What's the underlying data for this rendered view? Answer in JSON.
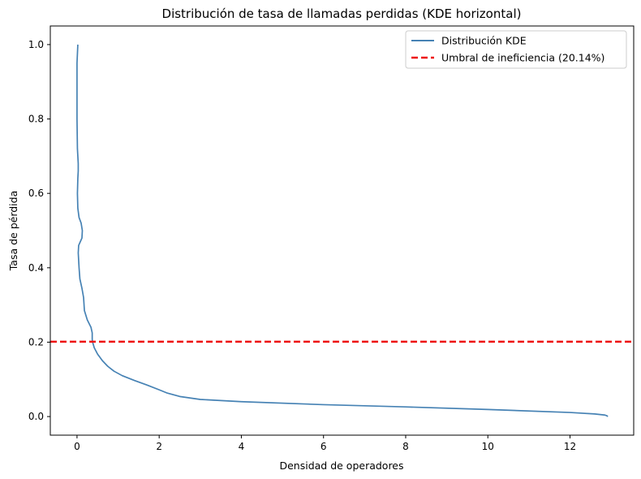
{
  "chart_data": {
    "type": "line",
    "title": "Distribución de tasa de llamadas perdidas (KDE horizontal)",
    "xlabel": "Densidad de operadores",
    "ylabel": "Tasa de pérdida",
    "xlim": [
      -0.65,
      13.55
    ],
    "ylim": [
      -0.05,
      1.05
    ],
    "xticks": [
      0,
      2,
      4,
      6,
      8,
      10,
      12
    ],
    "xtick_labels": [
      "0",
      "2",
      "4",
      "6",
      "8",
      "10",
      "12"
    ],
    "yticks": [
      0.0,
      0.2,
      0.4,
      0.6,
      0.8,
      1.0
    ],
    "ytick_labels": [
      "0.0",
      "0.2",
      "0.4",
      "0.6",
      "0.8",
      "1.0"
    ],
    "grid": false,
    "legend_position": "top-right",
    "series": [
      {
        "name": "Distribución KDE",
        "color": "#4682b4",
        "style": "solid",
        "points": [
          [
            12.92,
            0.0
          ],
          [
            12.9,
            0.002
          ],
          [
            12.85,
            0.004
          ],
          [
            12.6,
            0.007
          ],
          [
            12.0,
            0.011
          ],
          [
            10.0,
            0.019
          ],
          [
            8.0,
            0.026
          ],
          [
            6.0,
            0.032
          ],
          [
            4.0,
            0.04
          ],
          [
            3.0,
            0.046
          ],
          [
            2.5,
            0.054
          ],
          [
            2.2,
            0.063
          ],
          [
            2.0,
            0.072
          ],
          [
            1.7,
            0.085
          ],
          [
            1.4,
            0.097
          ],
          [
            1.1,
            0.11
          ],
          [
            0.9,
            0.122
          ],
          [
            0.75,
            0.135
          ],
          [
            0.62,
            0.15
          ],
          [
            0.5,
            0.168
          ],
          [
            0.42,
            0.185
          ],
          [
            0.38,
            0.2
          ],
          [
            0.37,
            0.207
          ],
          [
            0.37,
            0.225
          ],
          [
            0.34,
            0.24
          ],
          [
            0.25,
            0.26
          ],
          [
            0.18,
            0.285
          ],
          [
            0.16,
            0.32
          ],
          [
            0.12,
            0.345
          ],
          [
            0.07,
            0.37
          ],
          [
            0.05,
            0.4
          ],
          [
            0.03,
            0.44
          ],
          [
            0.04,
            0.46
          ],
          [
            0.08,
            0.47
          ],
          [
            0.12,
            0.48
          ],
          [
            0.13,
            0.5
          ],
          [
            0.1,
            0.52
          ],
          [
            0.05,
            0.535
          ],
          [
            0.02,
            0.56
          ],
          [
            0.01,
            0.6
          ],
          [
            0.02,
            0.64
          ],
          [
            0.03,
            0.66
          ],
          [
            0.03,
            0.68
          ],
          [
            0.01,
            0.72
          ],
          [
            0.0,
            0.8
          ],
          [
            0.0,
            0.9
          ],
          [
            0.0,
            0.95
          ],
          [
            0.02,
            1.0
          ]
        ]
      },
      {
        "name": "Umbral de ineficiencia (20.14%)",
        "color": "#ee1111",
        "style": "dashed",
        "y": 0.2014
      }
    ]
  }
}
